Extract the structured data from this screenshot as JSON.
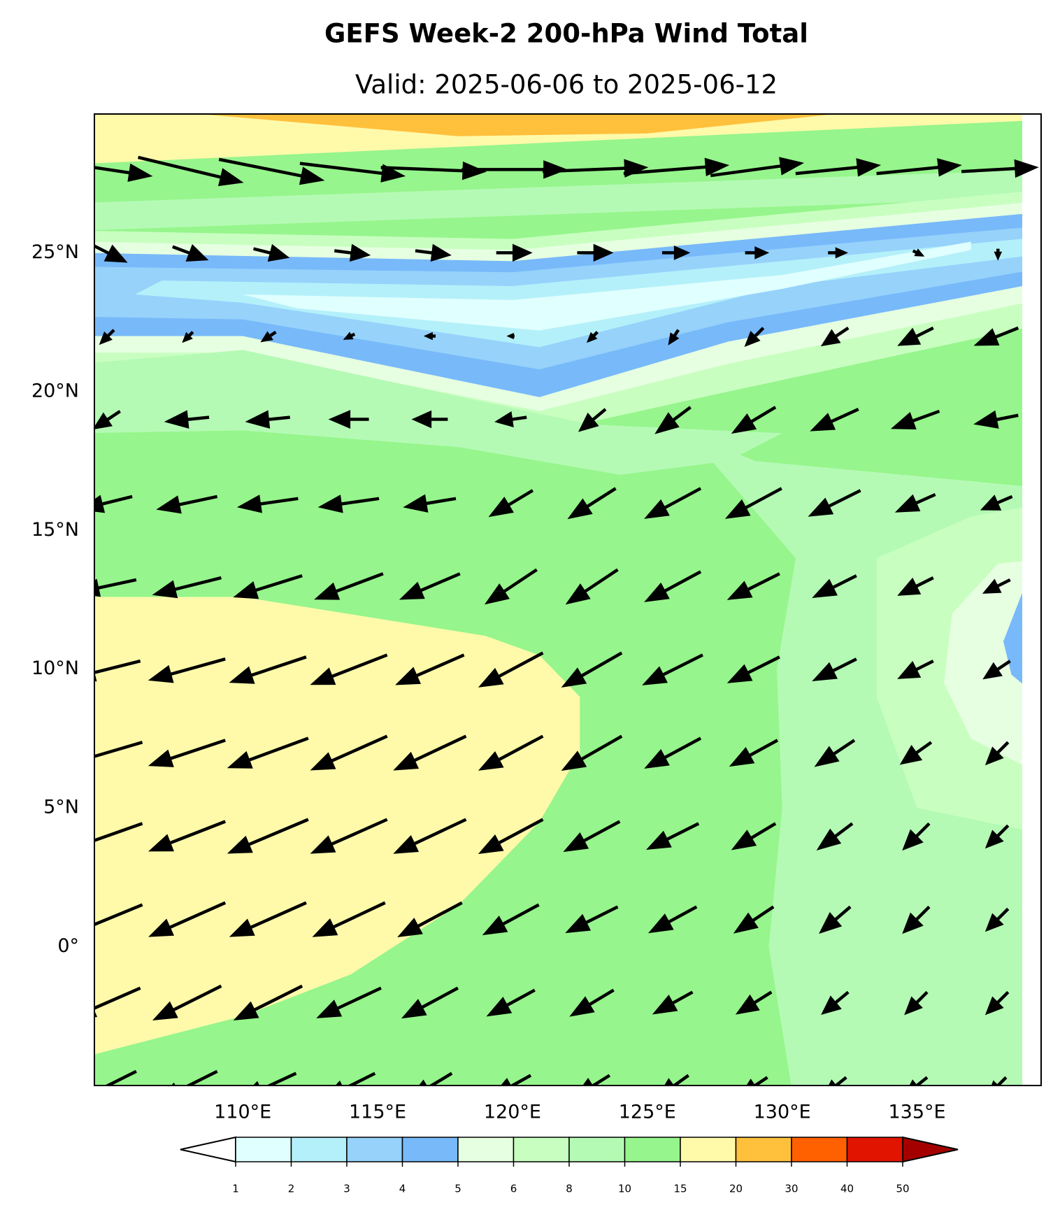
{
  "chart_data": {
    "type": "wind-map",
    "title": "GEFS Week-2 200-hPa Wind Total",
    "subtitle": "Valid: 2025-06-06 to 2025-06-12",
    "xlim": [
      104.5,
      139.6
    ],
    "ylim": [
      -5,
      30
    ],
    "xticks": [
      {
        "value": 110,
        "label": "110°E"
      },
      {
        "value": 115,
        "label": "115°E"
      },
      {
        "value": 120,
        "label": "120°E"
      },
      {
        "value": 125,
        "label": "125°E"
      },
      {
        "value": 130,
        "label": "130°E"
      },
      {
        "value": 135,
        "label": "135°E"
      }
    ],
    "yticks": [
      {
        "value": 0,
        "label": "0°"
      },
      {
        "value": 5,
        "label": "5°N"
      },
      {
        "value": 10,
        "label": "10°N"
      },
      {
        "value": 15,
        "label": "15°N"
      },
      {
        "value": 20,
        "label": "20°N"
      },
      {
        "value": 25,
        "label": "25°N"
      }
    ],
    "levels": [
      1,
      2,
      3,
      4,
      5,
      6,
      8,
      10,
      15,
      20,
      30,
      40,
      50
    ],
    "colors": [
      "#e0ffff",
      "#b4f0fa",
      "#96d2fa",
      "#78b9fa",
      "#e6ffe1",
      "#c8ffc0",
      "#b4fab4",
      "#96f58c",
      "#fffaaa",
      "#ffc03c",
      "#ff6000",
      "#e11400"
    ],
    "extend_colors": [
      "#ffffff",
      "#a50000"
    ],
    "vectors": {
      "lons": [
        105,
        108,
        111,
        114,
        117,
        120,
        123,
        126,
        129,
        132,
        135,
        138
      ],
      "lats": [
        28,
        25,
        22,
        19,
        16,
        13,
        10,
        7,
        4,
        1,
        -2,
        -5
      ],
      "u": [
        [
          20,
          25,
          25,
          25,
          25,
          25,
          25,
          25,
          22,
          20,
          20,
          18
        ],
        [
          8,
          8,
          8,
          8,
          8,
          8,
          8,
          6,
          5,
          4,
          2,
          0
        ],
        [
          -3,
          -2,
          -3,
          -2,
          -2,
          -1,
          -2,
          -2,
          -4,
          -6,
          -8,
          -10
        ],
        [
          -6,
          -10,
          -10,
          -9,
          -8,
          -7,
          -6,
          -8,
          -10,
          -11,
          -11,
          -10
        ],
        [
          -12,
          -14,
          -14,
          -14,
          -12,
          -10,
          -11,
          -13,
          -13,
          -12,
          -9,
          -7
        ],
        [
          -14,
          -16,
          -16,
          -16,
          -14,
          -12,
          -12,
          -13,
          -12,
          -10,
          -8,
          -6
        ],
        [
          -16,
          -18,
          -18,
          -18,
          -16,
          -15,
          -14,
          -14,
          -12,
          -10,
          -8,
          -6
        ],
        [
          -17,
          -18,
          -19,
          -18,
          -17,
          -15,
          -14,
          -13,
          -11,
          -9,
          -7,
          -5
        ],
        [
          -17,
          -18,
          -19,
          -18,
          -17,
          -15,
          -13,
          -12,
          -10,
          -8,
          -6,
          -5
        ],
        [
          -17,
          -18,
          -18,
          -17,
          -15,
          -13,
          -12,
          -11,
          -9,
          -7,
          -6,
          -5
        ],
        [
          -16,
          -16,
          -16,
          -15,
          -13,
          -11,
          -10,
          -9,
          -8,
          -6,
          -5,
          -5
        ],
        [
          -14,
          -14,
          -13,
          -12,
          -10,
          -9,
          -8,
          -7,
          -6,
          -5,
          -5,
          -4
        ]
      ],
      "v": [
        [
          -3,
          -6,
          -5,
          -3,
          -1,
          0,
          1,
          2,
          3,
          2,
          2,
          1
        ],
        [
          -4,
          -3,
          -2,
          -1,
          -1,
          0,
          0,
          0,
          0,
          0,
          -1,
          -2
        ],
        [
          -3,
          -2,
          -2,
          -1,
          0,
          0,
          -2,
          -3,
          -4,
          -4,
          -4,
          -4
        ],
        [
          -4,
          -1,
          -1,
          0,
          0,
          -1,
          -5,
          -6,
          -6,
          -5,
          -4,
          -2
        ],
        [
          -3,
          -3,
          -2,
          -2,
          -2,
          -6,
          -7,
          -7,
          -7,
          -6,
          -4,
          -3
        ],
        [
          -3,
          -4,
          -5,
          -6,
          -6,
          -8,
          -8,
          -7,
          -6,
          -5,
          -4,
          -3
        ],
        [
          -4,
          -5,
          -6,
          -7,
          -7,
          -8,
          -8,
          -7,
          -6,
          -5,
          -4,
          -4
        ],
        [
          -5,
          -6,
          -7,
          -8,
          -8,
          -8,
          -8,
          -7,
          -6,
          -6,
          -5,
          -5
        ],
        [
          -6,
          -7,
          -8,
          -8,
          -8,
          -8,
          -7,
          -6,
          -6,
          -6,
          -6,
          -5
        ],
        [
          -7,
          -8,
          -8,
          -8,
          -8,
          -7,
          -6,
          -6,
          -6,
          -6,
          -6,
          -5
        ],
        [
          -7,
          -8,
          -8,
          -7,
          -7,
          -6,
          -6,
          -5,
          -5,
          -5,
          -5,
          -5
        ],
        [
          -7,
          -7,
          -6,
          -6,
          -6,
          -5,
          -5,
          -5,
          -4,
          -4,
          -4,
          -4
        ]
      ]
    }
  }
}
